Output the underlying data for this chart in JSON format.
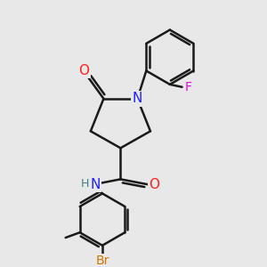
{
  "bg_color": "#e8e8e8",
  "bond_color": "#1a1a1a",
  "bond_width": 1.8,
  "atom_colors": {
    "N": "#2020ff",
    "O": "#ff2020",
    "F": "#ee00ee",
    "Br": "#cc7700",
    "H": "#408080",
    "C": "#1a1a1a"
  },
  "font_size": 10,
  "fig_size": [
    3.0,
    3.0
  ],
  "dpi": 100,
  "xlim": [
    0,
    10
  ],
  "ylim": [
    0,
    10
  ]
}
